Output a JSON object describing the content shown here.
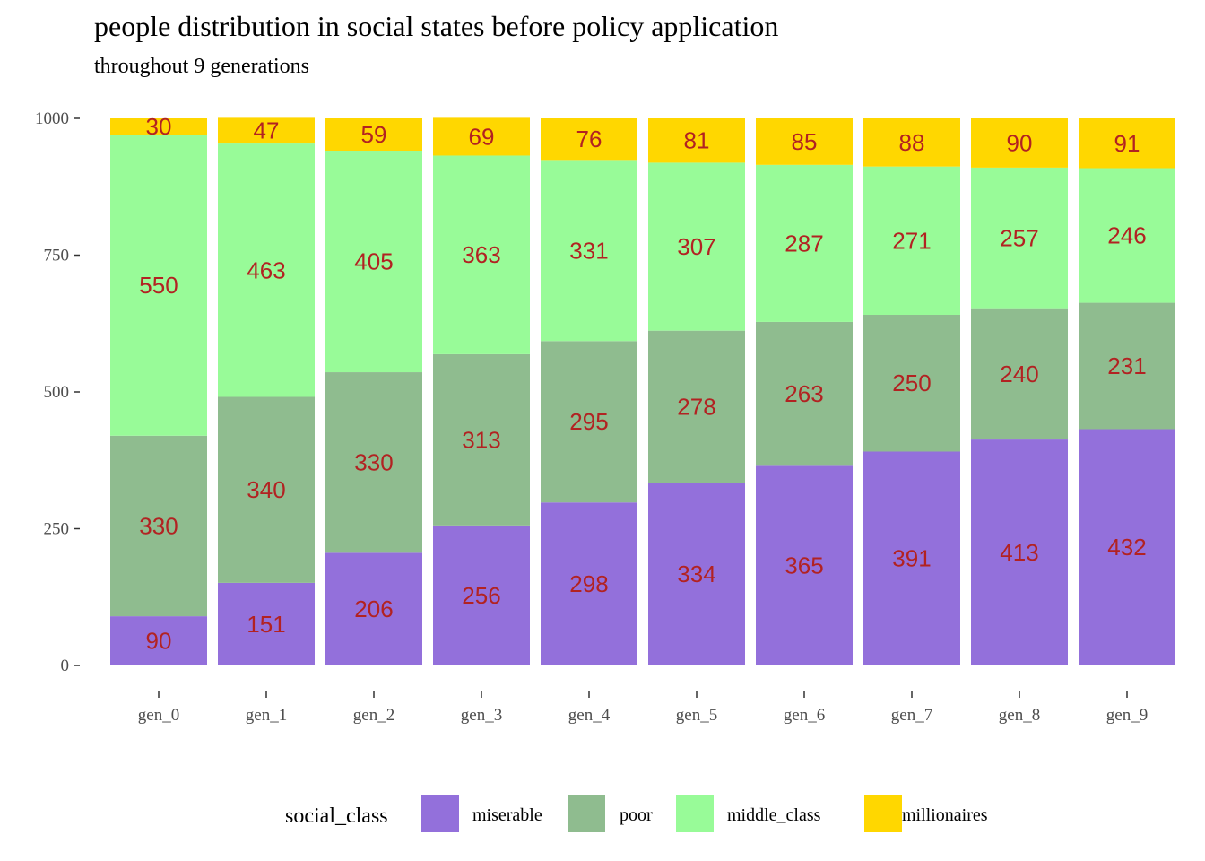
{
  "chart_data": {
    "type": "bar",
    "stacked": true,
    "title": "people distribution in social states before policy application",
    "subtitle": "throughout 9 generations",
    "xlabel": "",
    "ylabel": "",
    "ylim": [
      0,
      1000
    ],
    "yticks": [
      0,
      250,
      500,
      750,
      1000
    ],
    "ytick_labels": [
      "0",
      "250",
      "500",
      "750",
      "1000"
    ],
    "grid": false,
    "categories": [
      "gen_0",
      "gen_1",
      "gen_2",
      "gen_3",
      "gen_4",
      "gen_5",
      "gen_6",
      "gen_7",
      "gen_8",
      "gen_9"
    ],
    "series": [
      {
        "name": "miserable",
        "color": "#9370db",
        "values": [
          90,
          151,
          206,
          256,
          298,
          334,
          365,
          391,
          413,
          432
        ]
      },
      {
        "name": "poor",
        "color": "#8fbc8f",
        "values": [
          330,
          340,
          330,
          313,
          295,
          278,
          263,
          250,
          240,
          231
        ]
      },
      {
        "name": "middle_class",
        "color": "#98fb98",
        "values": [
          550,
          463,
          405,
          363,
          331,
          307,
          287,
          271,
          257,
          246
        ]
      },
      {
        "name": "millionaires",
        "color": "#ffd700",
        "values": [
          30,
          47,
          59,
          69,
          76,
          81,
          85,
          88,
          90,
          91
        ]
      }
    ],
    "data_label_color": "#b22222",
    "legend": {
      "title": "social_class",
      "position": "bottom",
      "entries": [
        "miserable",
        "poor",
        "middle_class",
        "millionaires"
      ]
    }
  }
}
